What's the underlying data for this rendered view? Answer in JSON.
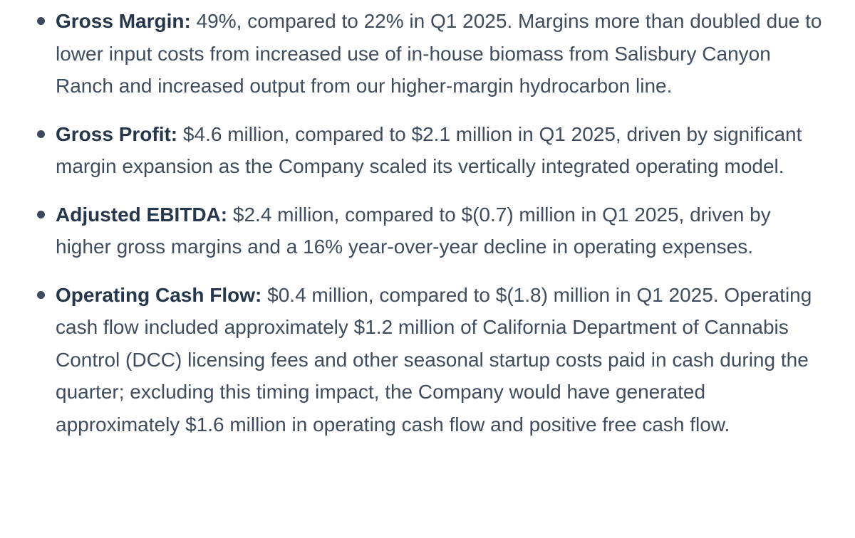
{
  "items": [
    {
      "label": "Gross Margin:",
      "text": " 49%, compared to 22% in Q1 2025. Margins more than doubled due to lower input costs from increased use of in-house biomass from Salisbury Canyon Ranch and increased output from our higher-margin hydrocarbon line."
    },
    {
      "label": "Gross Profit:",
      "text": " $4.6 million, compared to $2.1 million in Q1 2025, driven by significant margin expansion as the Company scaled its vertically integrated operating model."
    },
    {
      "label": "Adjusted EBITDA:",
      "text": " $2.4 million, compared to $(0.7) million in Q1 2025, driven by higher gross margins and a 16% year-over-year decline in operating expenses."
    },
    {
      "label": "Operating Cash Flow:",
      "text": " $0.4 million, compared to $(1.8) million in Q1 2025. Operating cash flow included approximately $1.2 million of California Department of Cannabis Control (DCC) licensing fees and other seasonal startup costs paid in cash during the quarter; excluding this timing impact, the Company would have generated approximately $1.6 million in operating cash flow and positive free cash flow."
    }
  ]
}
